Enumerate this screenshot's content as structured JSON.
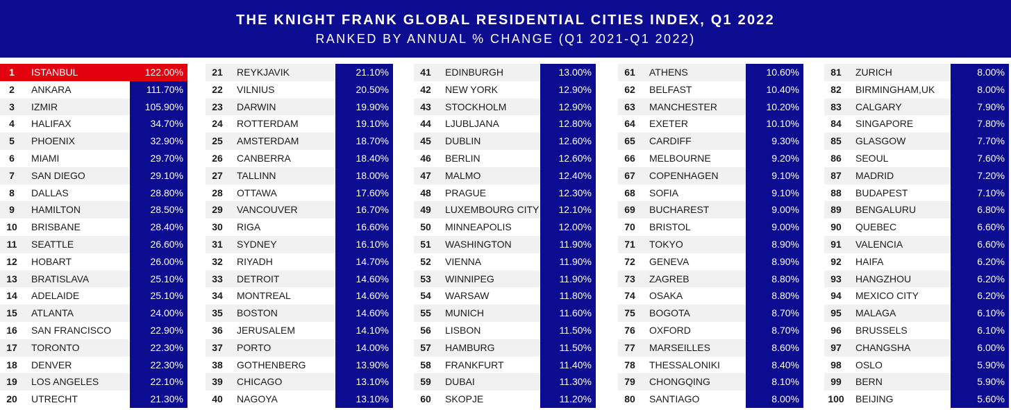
{
  "header": {
    "title": "THE KNIGHT FRANK GLOBAL RESIDENTIAL CITIES INDEX, Q1 2022",
    "subtitle": "RANKED BY ANNUAL % CHANGE (Q1 2021-Q1 2022)"
  },
  "colors": {
    "primary": "#0c0c91",
    "highlight": "#e3000f",
    "stripe": "#f1f1f1"
  },
  "columns": [
    [
      {
        "rank": "1",
        "city": "ISTANBUL",
        "value": "122.00%"
      },
      {
        "rank": "2",
        "city": "ANKARA",
        "value": "111.70%"
      },
      {
        "rank": "3",
        "city": "IZMIR",
        "value": "105.90%"
      },
      {
        "rank": "4",
        "city": "HALIFAX",
        "value": "34.70%"
      },
      {
        "rank": "5",
        "city": "PHOENIX",
        "value": "32.90%"
      },
      {
        "rank": "6",
        "city": "MIAMI",
        "value": "29.70%"
      },
      {
        "rank": "7",
        "city": "SAN DIEGO",
        "value": "29.10%"
      },
      {
        "rank": "8",
        "city": "DALLAS",
        "value": "28.80%"
      },
      {
        "rank": "9",
        "city": "HAMILTON",
        "value": "28.50%"
      },
      {
        "rank": "10",
        "city": "BRISBANE",
        "value": "28.40%"
      },
      {
        "rank": "11",
        "city": "SEATTLE",
        "value": "26.60%"
      },
      {
        "rank": "12",
        "city": "HOBART",
        "value": "26.00%"
      },
      {
        "rank": "13",
        "city": "BRATISLAVA",
        "value": "25.10%"
      },
      {
        "rank": "14",
        "city": "ADELAIDE",
        "value": "25.10%"
      },
      {
        "rank": "15",
        "city": "ATLANTA",
        "value": "24.00%"
      },
      {
        "rank": "16",
        "city": "SAN FRANCISCO",
        "value": "22.90%"
      },
      {
        "rank": "17",
        "city": "TORONTO",
        "value": "22.30%"
      },
      {
        "rank": "18",
        "city": "DENVER",
        "value": "22.30%"
      },
      {
        "rank": "19",
        "city": "LOS ANGELES",
        "value": "22.10%"
      },
      {
        "rank": "20",
        "city": "UTRECHT",
        "value": "21.30%"
      }
    ],
    [
      {
        "rank": "21",
        "city": "REYKJAVIK",
        "value": "21.10%"
      },
      {
        "rank": "22",
        "city": "VILNIUS",
        "value": "20.50%"
      },
      {
        "rank": "23",
        "city": "DARWIN",
        "value": "19.90%"
      },
      {
        "rank": "24",
        "city": "ROTTERDAM",
        "value": "19.10%"
      },
      {
        "rank": "25",
        "city": "AMSTERDAM",
        "value": "18.70%"
      },
      {
        "rank": "26",
        "city": "CANBERRA",
        "value": "18.40%"
      },
      {
        "rank": "27",
        "city": "TALLINN",
        "value": "18.00%"
      },
      {
        "rank": "28",
        "city": "OTTAWA",
        "value": "17.60%"
      },
      {
        "rank": "29",
        "city": "VANCOUVER",
        "value": "16.70%"
      },
      {
        "rank": "30",
        "city": "RIGA",
        "value": "16.60%"
      },
      {
        "rank": "31",
        "city": "SYDNEY",
        "value": "16.10%"
      },
      {
        "rank": "32",
        "city": "RIYADH",
        "value": "14.70%"
      },
      {
        "rank": "33",
        "city": "DETROIT",
        "value": "14.60%"
      },
      {
        "rank": "34",
        "city": "MONTREAL",
        "value": "14.60%"
      },
      {
        "rank": "35",
        "city": "BOSTON",
        "value": "14.60%"
      },
      {
        "rank": "36",
        "city": "JERUSALEM",
        "value": "14.10%"
      },
      {
        "rank": "37",
        "city": "PORTO",
        "value": "14.00%"
      },
      {
        "rank": "38",
        "city": "GOTHENBERG",
        "value": "13.90%"
      },
      {
        "rank": "39",
        "city": "CHICAGO",
        "value": "13.10%"
      },
      {
        "rank": "40",
        "city": "NAGOYA",
        "value": "13.10%"
      }
    ],
    [
      {
        "rank": "41",
        "city": "EDINBURGH",
        "value": "13.00%"
      },
      {
        "rank": "42",
        "city": "NEW YORK",
        "value": "12.90%"
      },
      {
        "rank": "43",
        "city": "STOCKHOLM",
        "value": "12.90%"
      },
      {
        "rank": "44",
        "city": "LJUBLJANA",
        "value": "12.80%"
      },
      {
        "rank": "45",
        "city": "DUBLIN",
        "value": "12.60%"
      },
      {
        "rank": "46",
        "city": "BERLIN",
        "value": "12.60%"
      },
      {
        "rank": "47",
        "city": "MALMO",
        "value": "12.40%"
      },
      {
        "rank": "48",
        "city": "PRAGUE",
        "value": "12.30%"
      },
      {
        "rank": "49",
        "city": "LUXEMBOURG CITY",
        "value": "12.10%"
      },
      {
        "rank": "50",
        "city": "MINNEAPOLIS",
        "value": "12.00%"
      },
      {
        "rank": "51",
        "city": "WASHINGTON",
        "value": "11.90%"
      },
      {
        "rank": "52",
        "city": "VIENNA",
        "value": "11.90%"
      },
      {
        "rank": "53",
        "city": "WINNIPEG",
        "value": "11.90%"
      },
      {
        "rank": "54",
        "city": "WARSAW",
        "value": "11.80%"
      },
      {
        "rank": "55",
        "city": "MUNICH",
        "value": "11.60%"
      },
      {
        "rank": "56",
        "city": "LISBON",
        "value": "11.50%"
      },
      {
        "rank": "57",
        "city": "HAMBURG",
        "value": "11.50%"
      },
      {
        "rank": "58",
        "city": "FRANKFURT",
        "value": "11.40%"
      },
      {
        "rank": "59",
        "city": "DUBAI",
        "value": "11.30%"
      },
      {
        "rank": "60",
        "city": "SKOPJE",
        "value": "11.20%"
      }
    ],
    [
      {
        "rank": "61",
        "city": "ATHENS",
        "value": "10.60%"
      },
      {
        "rank": "62",
        "city": "BELFAST",
        "value": "10.40%"
      },
      {
        "rank": "63",
        "city": "MANCHESTER",
        "value": "10.20%"
      },
      {
        "rank": "64",
        "city": "EXETER",
        "value": "10.10%"
      },
      {
        "rank": "65",
        "city": "CARDIFF",
        "value": "9.30%"
      },
      {
        "rank": "66",
        "city": "MELBOURNE",
        "value": "9.20%"
      },
      {
        "rank": "67",
        "city": "COPENHAGEN",
        "value": "9.10%"
      },
      {
        "rank": "68",
        "city": "SOFIA",
        "value": "9.10%"
      },
      {
        "rank": "69",
        "city": "BUCHAREST",
        "value": "9.00%"
      },
      {
        "rank": "70",
        "city": "BRISTOL",
        "value": "9.00%"
      },
      {
        "rank": "71",
        "city": "TOKYO",
        "value": "8.90%"
      },
      {
        "rank": "72",
        "city": "GENEVA",
        "value": "8.90%"
      },
      {
        "rank": "73",
        "city": "ZAGREB",
        "value": "8.80%"
      },
      {
        "rank": "74",
        "city": "OSAKA",
        "value": "8.80%"
      },
      {
        "rank": "75",
        "city": "BOGOTA",
        "value": "8.70%"
      },
      {
        "rank": "76",
        "city": "OXFORD",
        "value": "8.70%"
      },
      {
        "rank": "77",
        "city": "MARSEILLES",
        "value": "8.60%"
      },
      {
        "rank": "78",
        "city": "THESSALONIKI",
        "value": "8.40%"
      },
      {
        "rank": "79",
        "city": "CHONGQING",
        "value": "8.10%"
      },
      {
        "rank": "80",
        "city": "SANTIAGO",
        "value": "8.00%"
      }
    ],
    [
      {
        "rank": "81",
        "city": "ZURICH",
        "value": "8.00%"
      },
      {
        "rank": "82",
        "city": "BIRMINGHAM,UK",
        "value": "8.00%"
      },
      {
        "rank": "83",
        "city": "CALGARY",
        "value": "7.90%"
      },
      {
        "rank": "84",
        "city": "SINGAPORE",
        "value": "7.80%"
      },
      {
        "rank": "85",
        "city": "GLASGOW",
        "value": "7.70%"
      },
      {
        "rank": "86",
        "city": "SEOUL",
        "value": "7.60%"
      },
      {
        "rank": "87",
        "city": "MADRID",
        "value": "7.20%"
      },
      {
        "rank": "88",
        "city": "BUDAPEST",
        "value": "7.10%"
      },
      {
        "rank": "89",
        "city": "BENGALURU",
        "value": "6.80%"
      },
      {
        "rank": "90",
        "city": "QUEBEC",
        "value": "6.60%"
      },
      {
        "rank": "91",
        "city": "VALENCIA",
        "value": "6.60%"
      },
      {
        "rank": "92",
        "city": "HAIFA",
        "value": "6.20%"
      },
      {
        "rank": "93",
        "city": "HANGZHOU",
        "value": "6.20%"
      },
      {
        "rank": "94",
        "city": "MEXICO CITY",
        "value": "6.20%"
      },
      {
        "rank": "95",
        "city": "MALAGA",
        "value": "6.10%"
      },
      {
        "rank": "96",
        "city": "BRUSSELS",
        "value": "6.10%"
      },
      {
        "rank": "97",
        "city": "CHANGSHA",
        "value": "6.00%"
      },
      {
        "rank": "98",
        "city": "OSLO",
        "value": "5.90%"
      },
      {
        "rank": "99",
        "city": "BERN",
        "value": "5.90%"
      },
      {
        "rank": "100",
        "city": "BEIJING",
        "value": "5.60%"
      }
    ]
  ]
}
